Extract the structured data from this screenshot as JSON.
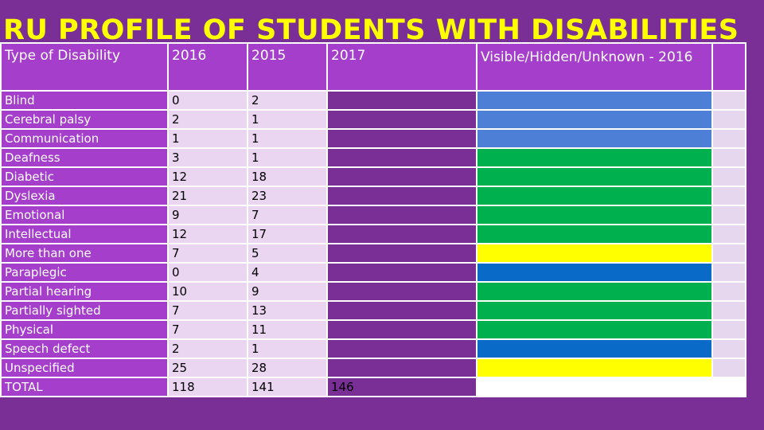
{
  "title": "RU PROFILE OF STUDENTS WITH DISABILITIES",
  "headers": {
    "type": "Type of Disability",
    "y2016": "2016",
    "y2015": "2015",
    "y2017": "2017",
    "visibility": "Visible/Hidden/Unknown - 2016",
    "extra": ""
  },
  "colors": {
    "blue_light": "#4e7fd6",
    "blue_dark": "#0a6ac8",
    "green": "#00b04f",
    "yellow": "#ffff00",
    "lavender": "#e6d6ee",
    "white": "#ffffff"
  },
  "rows": [
    {
      "type": "Blind",
      "y2016": "0",
      "y2015": "2",
      "y2017": "",
      "vis": "",
      "visColor": "#4e7fd6"
    },
    {
      "type": "Cerebral palsy",
      "y2016": "2",
      "y2015": "1",
      "y2017": "",
      "vis": "",
      "visColor": "#4e7fd6"
    },
    {
      "type": "Communication",
      "y2016": "1",
      "y2015": "1",
      "y2017": "",
      "vis": "",
      "visColor": "#4e7fd6"
    },
    {
      "type": "Deafness",
      "y2016": "3",
      "y2015": "1",
      "y2017": "",
      "vis": "",
      "visColor": "#00b04f"
    },
    {
      "type": "Diabetic",
      "y2016": "12",
      "y2015": "18",
      "y2017": "",
      "vis": "",
      "visColor": "#00b04f"
    },
    {
      "type": "Dyslexia",
      "y2016": "21",
      "y2015": "23",
      "y2017": "",
      "vis": "",
      "visColor": "#00b04f"
    },
    {
      "type": "Emotional",
      "y2016": "9",
      "y2015": "7",
      "y2017": "",
      "vis": "",
      "visColor": "#00b04f"
    },
    {
      "type": "Intellectual",
      "y2016": "12",
      "y2015": "17",
      "y2017": "",
      "vis": "",
      "visColor": "#00b04f"
    },
    {
      "type": "More than one",
      "y2016": "7",
      "y2015": "5",
      "y2017": "",
      "vis": "",
      "visColor": "#ffff00"
    },
    {
      "type": "Paraplegic",
      "y2016": "0",
      "y2015": "4",
      "y2017": "",
      "vis": "",
      "visColor": "#0a6ac8"
    },
    {
      "type": "Partial hearing",
      "y2016": "10",
      "y2015": "9",
      "y2017": "",
      "vis": "",
      "visColor": "#00b04f"
    },
    {
      "type": "Partially sighted",
      "y2016": "7",
      "y2015": "13",
      "y2017": "",
      "vis": "",
      "visColor": "#00b04f"
    },
    {
      "type": "Physical",
      "y2016": "7",
      "y2015": "11",
      "y2017": "",
      "vis": "",
      "visColor": "#00b04f"
    },
    {
      "type": "Speech defect",
      "y2016": "2",
      "y2015": "1",
      "y2017": "",
      "vis": "",
      "visColor": "#0a6ac8"
    },
    {
      "type": "Unspecified",
      "y2016": "25",
      "y2015": "28",
      "y2017": "",
      "vis": "",
      "visColor": "#ffff00"
    }
  ],
  "total": {
    "type": "TOTAL",
    "y2016": "118",
    "y2015": "141",
    "y2017": "146",
    "vis": ""
  }
}
